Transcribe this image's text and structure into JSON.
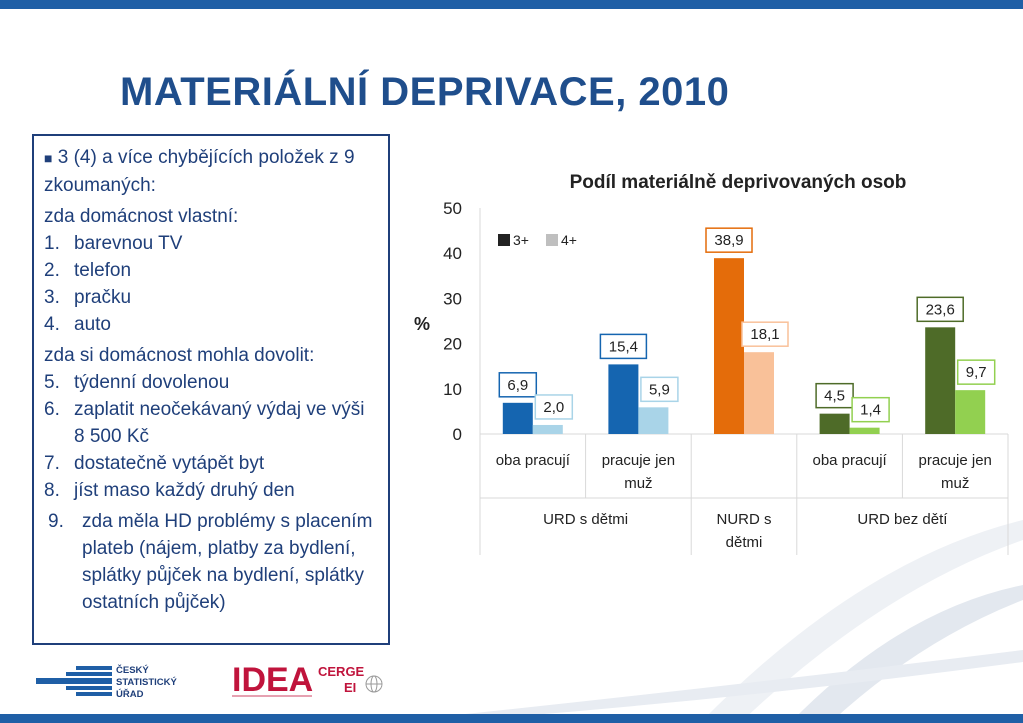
{
  "title": "MATERIÁLNÍ DEPRIVACE, 2010",
  "info_box": {
    "intro": "3 (4) a více chybějících položek z 9 zkoumaných:",
    "owns_heading": "zda domácnost vlastní:",
    "owns_items": [
      {
        "num": "1.",
        "text": "barevnou TV"
      },
      {
        "num": "2.",
        "text": "telefon"
      },
      {
        "num": "3.",
        "text": "pračku"
      },
      {
        "num": "4.",
        "text": "auto"
      }
    ],
    "afford_heading": "zda si domácnost mohla dovolit:",
    "afford_items": [
      {
        "num": "5.",
        "text": "týdenní dovolenou"
      },
      {
        "num": "6.",
        "text": "zaplatit neočekávaný výdaj ve výši 8 500 Kč"
      },
      {
        "num": "7.",
        "text": "dostatečně vytápět byt"
      },
      {
        "num": "8.",
        "text": "jíst maso každý druhý den"
      }
    ],
    "last_item": {
      "num": "9.",
      "text": "zda měla HD problémy s placením plateb (nájem, platby za bydlení, splátky půjček na bydlení, splátky ostatních půjček)"
    }
  },
  "logos": {
    "csu": [
      "ČESKÝ",
      "STATISTICKÝ",
      "ÚŘAD"
    ],
    "idea": "IDEA",
    "cerge": "CERGE",
    "ei": "EI"
  },
  "colors": {
    "frame_blue": "#1f5fa6",
    "text_blue": "#1f3f7a"
  },
  "chart_data": {
    "type": "bar",
    "title": "Podíl materiálně deprivovaných osob",
    "ylabel": "%",
    "ylim": [
      0,
      50
    ],
    "yticks": [
      0,
      10,
      20,
      30,
      40,
      50
    ],
    "legend": [
      "3+",
      "4+"
    ],
    "legend_position": "top-left",
    "grid": false,
    "groups": [
      {
        "group": "URD s dětmi",
        "categories": [
          {
            "label": "oba pracují",
            "values": {
              "3+": 6.9,
              "4+": 2.0
            },
            "labels": {
              "3+": "6,9",
              "4+": "2,0"
            },
            "colors": [
              "#1565b0",
              "#a9d4e8"
            ]
          },
          {
            "label": "pracuje jen muž",
            "values": {
              "3+": 15.4,
              "4+": 5.9
            },
            "labels": {
              "3+": "15,4",
              "4+": "5,9"
            },
            "colors": [
              "#1565b0",
              "#a9d4e8"
            ]
          }
        ]
      },
      {
        "group": "NURD s dětmi",
        "categories": [
          {
            "label": "",
            "values": {
              "3+": 38.9,
              "4+": 18.1
            },
            "labels": {
              "3+": "38,9",
              "4+": "18,1"
            },
            "colors": [
              "#e46c0a",
              "#f9c199"
            ]
          }
        ]
      },
      {
        "group": "URD bez dětí",
        "categories": [
          {
            "label": "oba pracují",
            "values": {
              "3+": 4.5,
              "4+": 1.4
            },
            "labels": {
              "3+": "4,5",
              "4+": "1,4"
            },
            "colors": [
              "#4e6b28",
              "#92d050"
            ]
          },
          {
            "label": "pracuje jen muž",
            "values": {
              "3+": 23.6,
              "4+": 9.7
            },
            "labels": {
              "3+": "23,6",
              "4+": "9,7"
            },
            "colors": [
              "#4e6b28",
              "#92d050"
            ]
          }
        ]
      }
    ]
  }
}
